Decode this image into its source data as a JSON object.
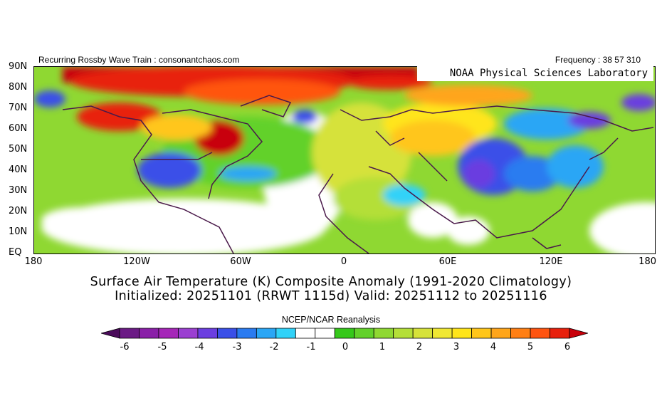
{
  "header": {
    "left": "Recurring Rossby Wave Train : consonantchaos.com",
    "right": "Frequency : 38 57 310",
    "watermark": "NOAA Physical Sciences Laboratory"
  },
  "axes": {
    "lat_labels": [
      "90N",
      "80N",
      "70N",
      "60N",
      "50N",
      "40N",
      "30N",
      "20N",
      "10N",
      "EQ"
    ],
    "lon_labels": [
      "180",
      "120W",
      "60W",
      "0",
      "60E",
      "120E",
      "180"
    ]
  },
  "titles": {
    "line1": "Surface Air Temperature (K) Composite Anomaly (1991-2020 Climatology)",
    "line2": "Initialized: 20251101 (RRWT 1115d) Valid: 20251112 to 20251116"
  },
  "source": "NCEP/NCAR Reanalysis",
  "colorbar": {
    "ticks": [
      "-6",
      "-5",
      "-4",
      "-3",
      "-2",
      "-1",
      "0",
      "1",
      "2",
      "3",
      "4",
      "5",
      "6"
    ],
    "colors": [
      "#4a0b5a",
      "#6b1a85",
      "#8a1fa8",
      "#a526b8",
      "#9b3fd1",
      "#6b3ee0",
      "#3a4fe8",
      "#2a7bf0",
      "#2aa6f5",
      "#30d2f8",
      "#ffffff",
      "#ffffff",
      "#35c81a",
      "#62d12a",
      "#8fd832",
      "#b4df38",
      "#d6e23a",
      "#f0e833",
      "#ffe51a",
      "#ffc61a",
      "#ffa51a",
      "#ff7f14",
      "#ff5410",
      "#e8200c",
      "#c8000a"
    ]
  },
  "map": {
    "region": "Northern Hemisphere, 180W-180E, EQ-90N",
    "palette": {
      "deep_red": "#c8000a",
      "red": "#e8200c",
      "orange": "#ff7f14",
      "yellow": "#ffe51a",
      "lightgreen": "#8fd832",
      "green": "#35c81a",
      "cyan": "#30d2f8",
      "lightblue": "#2aa6f5",
      "blue": "#3a4fe8",
      "violet": "#6b3ee0",
      "purple": "#8a1fa8",
      "coast": "#4a1a4a"
    }
  }
}
